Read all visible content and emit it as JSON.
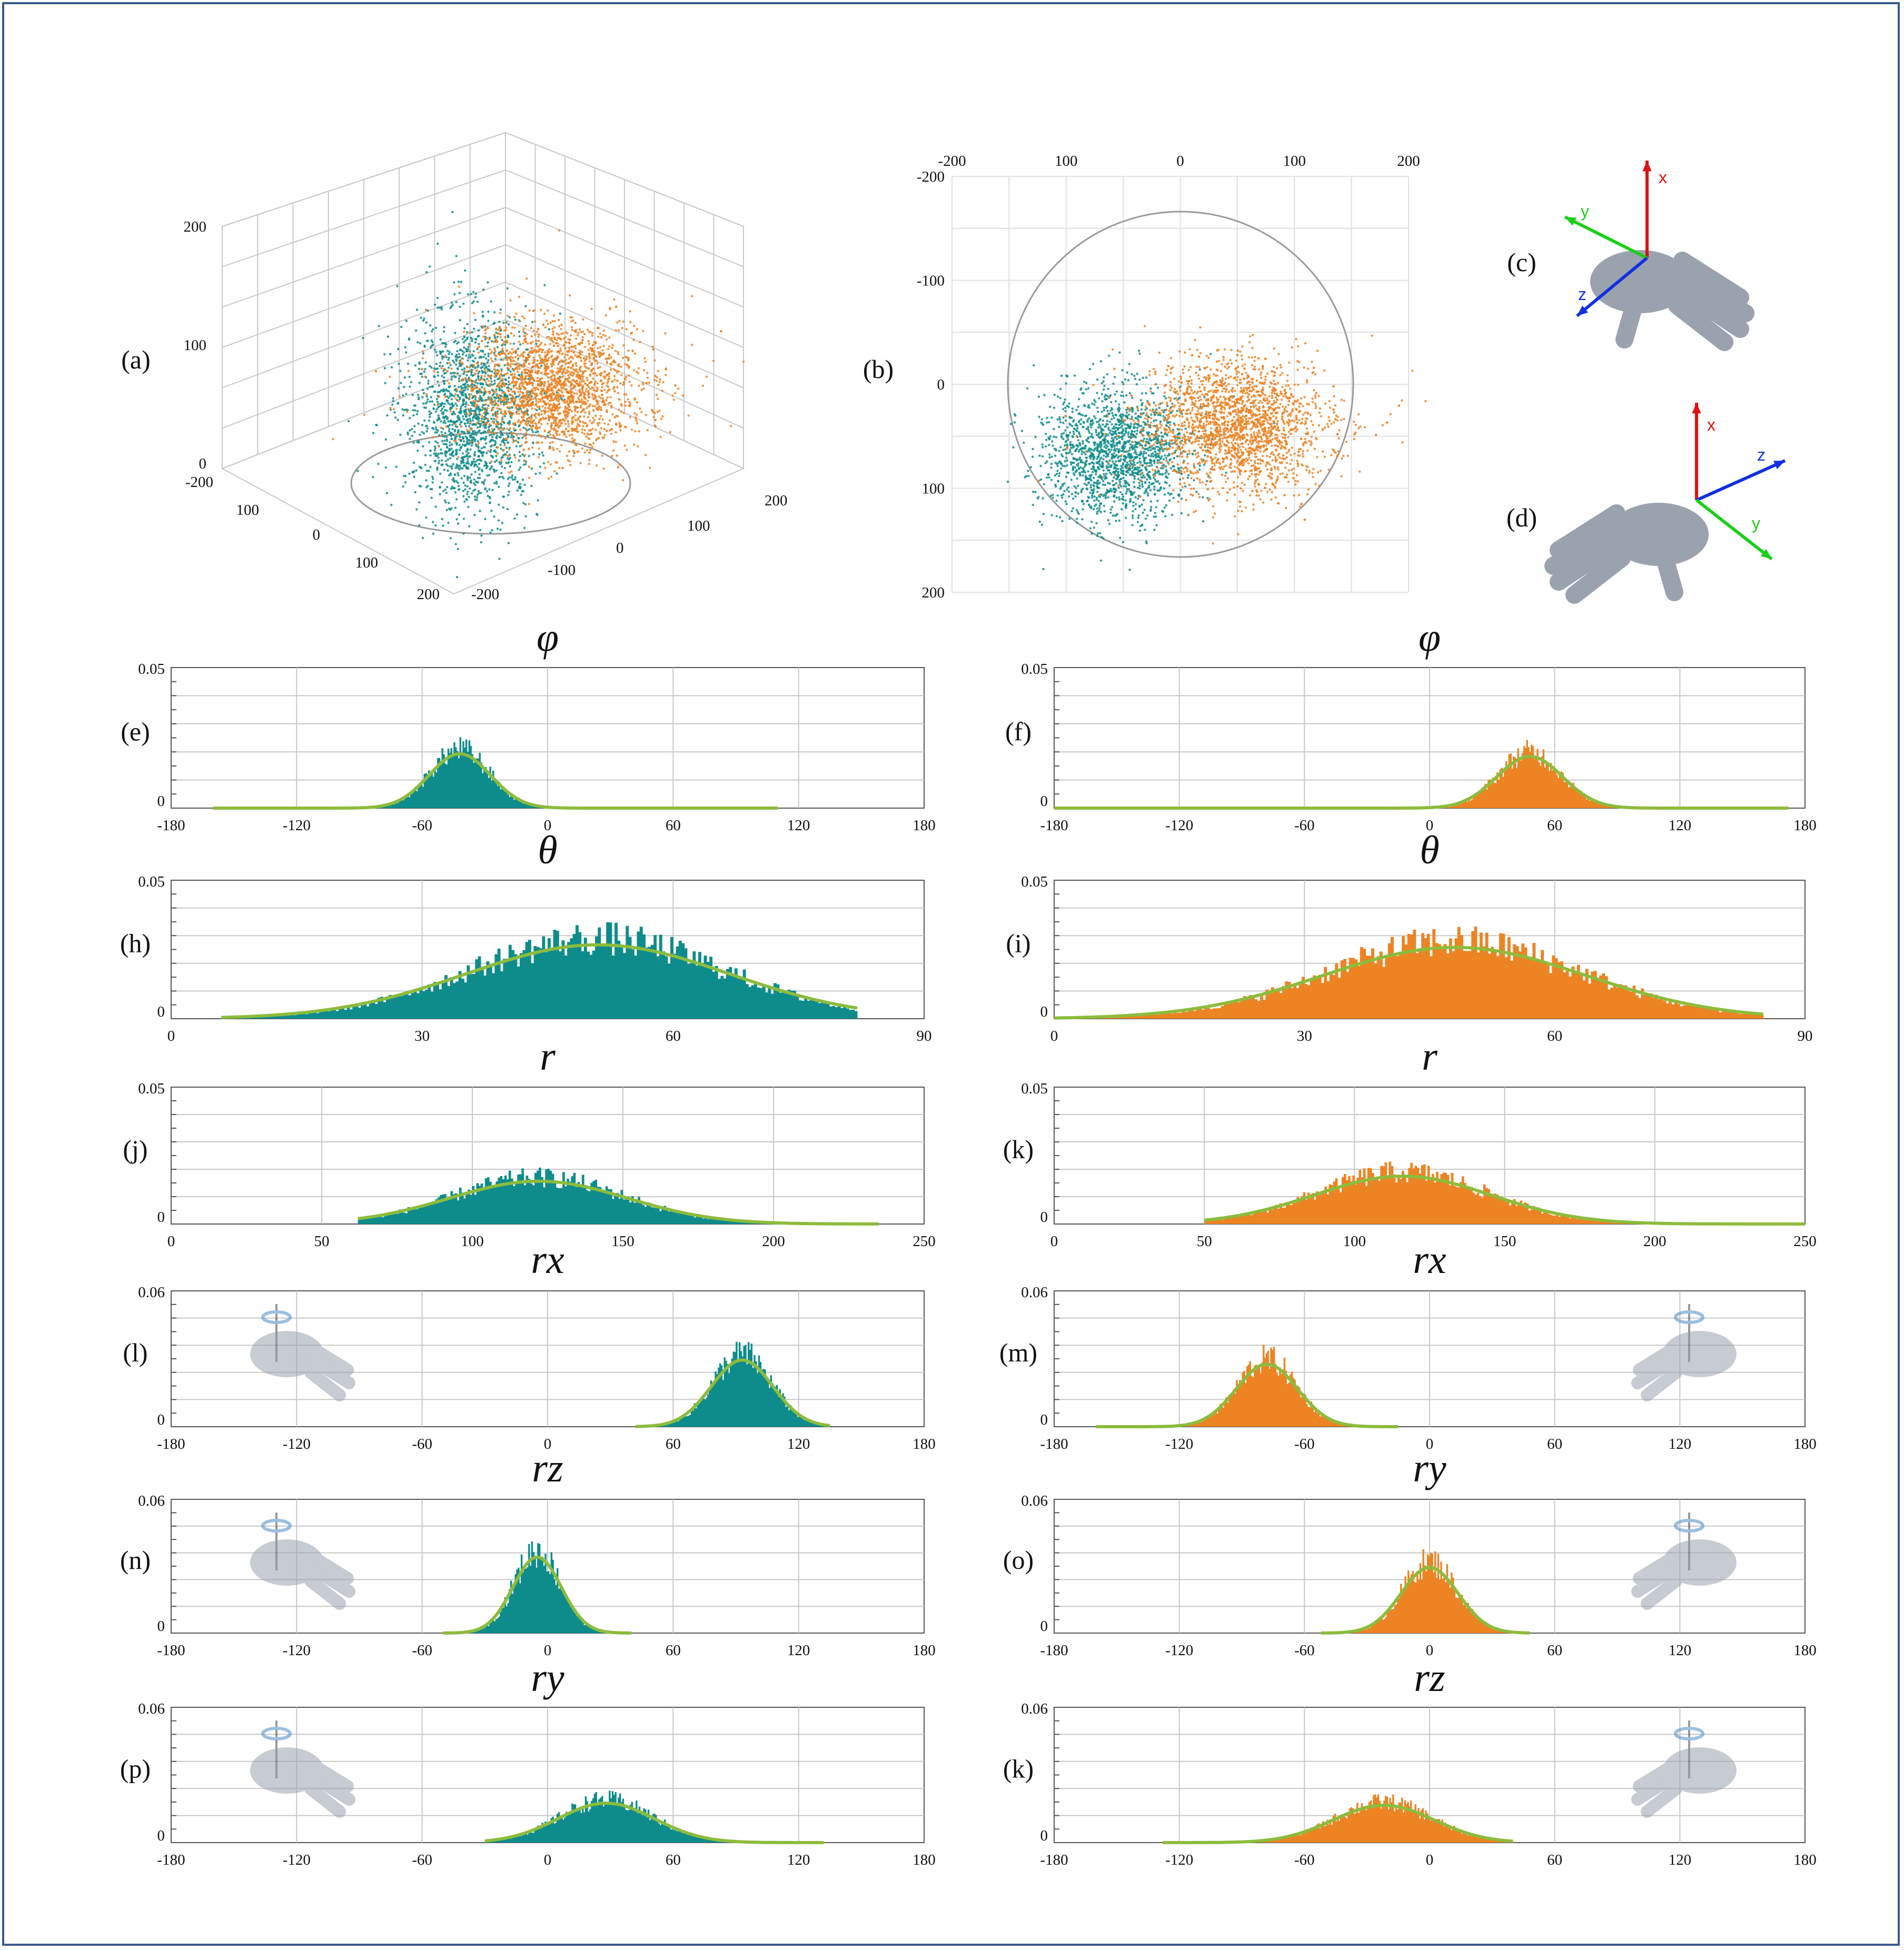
{
  "colors": {
    "teal": "#0e8c8c",
    "orange": "#ec8424",
    "fit": "#8cbc3c",
    "grid": "#c8c8c8",
    "frame": "#3a5a8c",
    "axis_x": "#e01010",
    "axis_y": "#18d018",
    "axis_z": "#1030e0",
    "hand": "#9aa2ae"
  },
  "panels_top": {
    "a": {
      "label": "(a)",
      "z_ticks": [
        "200",
        "100",
        "0"
      ],
      "left_ticks": [
        "-200",
        "100",
        "0",
        "100",
        "200"
      ],
      "right_ticks": [
        "200",
        "100",
        "0",
        "-100",
        "-200"
      ]
    },
    "b": {
      "label": "(b)",
      "top_ticks": [
        "-200",
        "100",
        "0",
        "100",
        "200"
      ],
      "left_ticks": [
        "-200",
        "-100",
        "0",
        "100",
        "200"
      ]
    },
    "c": {
      "label": "(c)",
      "axes": [
        "x",
        "y",
        "z"
      ],
      "icon": "hand-pose-icon"
    },
    "d": {
      "label": "(d)",
      "axes": [
        "x",
        "z",
        "y"
      ],
      "icon": "hand-pose-icon"
    }
  },
  "chart_data": [
    {
      "id": "e",
      "label": "(e)",
      "title": "φ",
      "type": "histogram",
      "color": "teal",
      "xlim": [
        -180,
        180
      ],
      "xticks": [
        -180,
        -120,
        -60,
        0,
        60,
        120,
        180
      ],
      "ymax": 0.05,
      "ytick_labels": [
        "0.05",
        "0"
      ],
      "mean": -42,
      "sd": 14,
      "peak": 0.021,
      "range": [
        -160,
        110
      ]
    },
    {
      "id": "f",
      "label": "(f)",
      "title": "φ",
      "type": "histogram",
      "color": "orange",
      "xlim": [
        -180,
        180
      ],
      "xticks": [
        -180,
        -120,
        -60,
        0,
        60,
        120,
        180
      ],
      "ymax": 0.05,
      "ytick_labels": [
        "0.05",
        "0"
      ],
      "mean": 48,
      "sd": 15,
      "peak": 0.02,
      "range": [
        -180,
        172
      ]
    },
    {
      "id": "h",
      "label": "(h)",
      "title": "θ",
      "type": "histogram",
      "color": "teal",
      "xlim": [
        0,
        90
      ],
      "xticks": [
        0,
        30,
        60,
        90
      ],
      "ymax": 0.05,
      "ytick_labels": [
        "0.05",
        "0"
      ],
      "mean": 51,
      "sd": 15,
      "peak": 0.029,
      "range": [
        6,
        82
      ]
    },
    {
      "id": "i",
      "label": "(i)",
      "title": "θ",
      "type": "histogram",
      "color": "orange",
      "xlim": [
        0,
        90
      ],
      "xticks": [
        0,
        30,
        60,
        90
      ],
      "ymax": 0.05,
      "ytick_labels": [
        "0.05",
        "0"
      ],
      "mean": 48,
      "sd": 15,
      "peak": 0.028,
      "range": [
        0,
        85
      ]
    },
    {
      "id": "j",
      "label": "(j)",
      "title": "r",
      "type": "histogram",
      "color": "teal",
      "xlim": [
        0,
        250
      ],
      "xticks": [
        0,
        50,
        100,
        150,
        200,
        250
      ],
      "ymax": 0.05,
      "ytick_labels": [
        "0.05",
        "0"
      ],
      "mean": 122,
      "sd": 28,
      "peak": 0.017,
      "range": [
        62,
        235
      ]
    },
    {
      "id": "k",
      "label": "(k)",
      "title": "r",
      "type": "histogram",
      "color": "orange",
      "xlim": [
        0,
        250
      ],
      "xticks": [
        0,
        50,
        100,
        150,
        200,
        250
      ],
      "ymax": 0.05,
      "ytick_labels": [
        "0.05",
        "0"
      ],
      "mean": 116,
      "sd": 28,
      "peak": 0.019,
      "range": [
        50,
        250
      ]
    },
    {
      "id": "l",
      "label": "(l)",
      "title": "rx",
      "type": "histogram",
      "color": "teal",
      "xlim": [
        -180,
        180
      ],
      "xticks": [
        -180,
        -120,
        -60,
        0,
        60,
        120,
        180
      ],
      "ymax": 0.06,
      "ytick_labels": [
        "0.06",
        "0"
      ],
      "mean": 93,
      "sd": 14,
      "peak": 0.032,
      "range": [
        42,
        135
      ],
      "icon": "hand-rotation-x-icon",
      "icon_side": "left"
    },
    {
      "id": "m",
      "label": "(m)",
      "title": "rx",
      "type": "histogram",
      "color": "orange",
      "xlim": [
        -180,
        180
      ],
      "xticks": [
        -180,
        -120,
        -60,
        0,
        60,
        120,
        180
      ],
      "ymax": 0.06,
      "ytick_labels": [
        "0.06",
        "0"
      ],
      "mean": -78,
      "sd": 14,
      "peak": 0.03,
      "range": [
        -160,
        -15
      ],
      "icon": "hand-rotation-x-icon",
      "icon_side": "right"
    },
    {
      "id": "n",
      "label": "(n)",
      "title": "rz",
      "type": "histogram",
      "color": "teal",
      "xlim": [
        -180,
        180
      ],
      "xticks": [
        -180,
        -120,
        -60,
        0,
        60,
        120,
        180
      ],
      "ymax": 0.06,
      "ytick_labels": [
        "0.06",
        "0"
      ],
      "mean": -5,
      "sd": 11,
      "peak": 0.037,
      "range": [
        -50,
        40
      ],
      "icon": "hand-rotation-z-icon",
      "icon_side": "left"
    },
    {
      "id": "o",
      "label": "(o)",
      "title": "ry",
      "type": "histogram",
      "color": "orange",
      "xlim": [
        -180,
        180
      ],
      "xticks": [
        -180,
        -120,
        -60,
        0,
        60,
        120,
        180
      ],
      "ymax": 0.06,
      "ytick_labels": [
        "0.06",
        "0"
      ],
      "mean": 0,
      "sd": 13,
      "peak": 0.032,
      "range": [
        -52,
        48
      ],
      "icon": "hand-rotation-y-icon",
      "icon_side": "right"
    },
    {
      "id": "p",
      "label": "(p)",
      "title": "ry",
      "type": "histogram",
      "color": "teal",
      "xlim": [
        -180,
        180
      ],
      "xticks": [
        -180,
        -120,
        -60,
        0,
        60,
        120,
        180
      ],
      "ymax": 0.06,
      "ytick_labels": [
        "0.06",
        "0"
      ],
      "mean": 28,
      "sd": 22,
      "peak": 0.019,
      "range": [
        -30,
        132
      ],
      "icon": "hand-rotation-y-icon",
      "icon_side": "left"
    },
    {
      "id": "k2",
      "label": "(k)",
      "title": "rz",
      "type": "histogram",
      "color": "orange",
      "xlim": [
        -180,
        180
      ],
      "xticks": [
        -180,
        -120,
        -60,
        0,
        60,
        120,
        180
      ],
      "ymax": 0.06,
      "ytick_labels": [
        "0.06",
        "0"
      ],
      "mean": -22,
      "sd": 23,
      "peak": 0.018,
      "range": [
        -128,
        40
      ],
      "icon": "hand-rotation-z-icon",
      "icon_side": "right"
    }
  ]
}
